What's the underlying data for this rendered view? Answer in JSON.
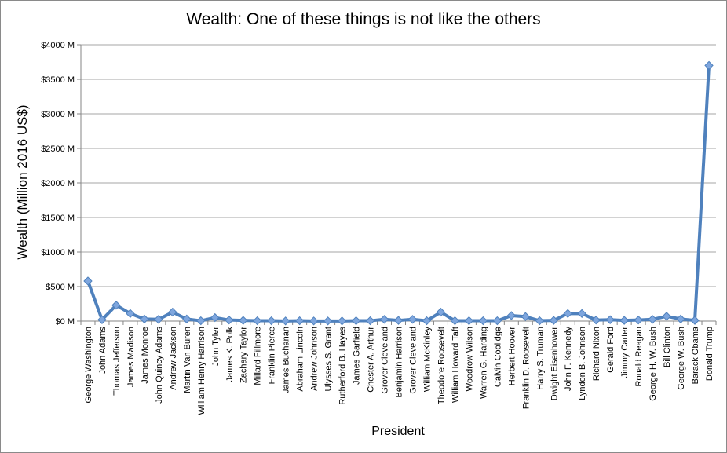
{
  "chart_data": {
    "type": "line",
    "title": "Wealth: One of these things is not like the others",
    "xlabel": "President",
    "ylabel": "Wealth (Million 2016 US$)",
    "ylim": [
      0,
      4000
    ],
    "yticks": [
      "$0 M",
      "$500 M",
      "$1000 M",
      "$1500 M",
      "$2000 M",
      "$2500 M",
      "$3000 M",
      "$3500 M",
      "$4000 M"
    ],
    "ytick_values": [
      0,
      500,
      1000,
      1500,
      2000,
      2500,
      3000,
      3500,
      4000
    ],
    "grid": true,
    "series_color": "#4f81bd",
    "marker_color": "#7ea6de",
    "categories": [
      "George Washington",
      "John Adams",
      "Thomas Jefferson",
      "James Madison",
      "James Monroe",
      "John Quincy Adams",
      "Andrew Jackson",
      "Martin Van Buren",
      "William Henry Harrison",
      "John Tyler",
      "James K. Polk",
      "Zachary Taylor",
      "Millard Fillmore",
      "Franklin Pierce",
      "James Buchanan",
      "Abraham Lincoln",
      "Andrew Johnson",
      "Ulysses S. Grant",
      "Rutherford B. Hayes",
      "James Garfield",
      "Chester A. Arthur",
      "Grover Cleveland",
      "Benjamin Harrison",
      "Grover Cleveland",
      "William McKinley",
      "Theodore Roosevelt",
      "William Howard Taft",
      "Woodrow Wilson",
      "Warren G. Harding",
      "Calvin Coolidge",
      "Herbert Hoover",
      "Franklin D. Roosevelt",
      "Harry S. Truman",
      "Dwight Eisenhower",
      "John F. Kennedy",
      "Lyndon B. Johnson",
      "Richard Nixon",
      "Gerald Ford",
      "Jimmy Carter",
      "Ronald Reagan",
      "George H. W. Bush",
      "Bill Clinton",
      "George W. Bush",
      "Barack Obama",
      "Donald Trump"
    ],
    "values": [
      580,
      20,
      230,
      110,
      30,
      25,
      130,
      30,
      5,
      50,
      15,
      10,
      5,
      5,
      2,
      5,
      2,
      2,
      2,
      5,
      5,
      25,
      10,
      25,
      5,
      130,
      5,
      5,
      5,
      5,
      80,
      65,
      5,
      10,
      110,
      110,
      15,
      20,
      10,
      15,
      25,
      70,
      30,
      10,
      3700
    ]
  }
}
